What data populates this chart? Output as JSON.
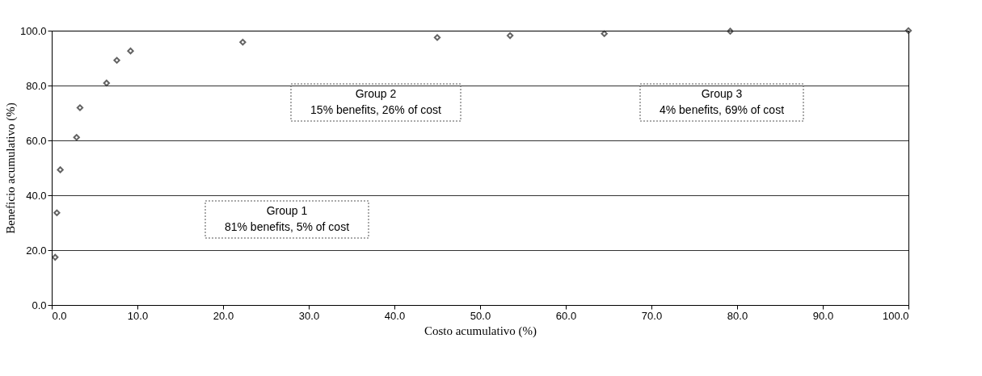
{
  "chart_data": {
    "type": "scatter",
    "xlabel": "Costo acumulativo (%)",
    "ylabel": "Beneficio acumulativo (%)",
    "x": [
      0.4,
      0.6,
      1.0,
      2.9,
      3.3,
      6.4,
      7.6,
      9.2,
      22.3,
      45.0,
      53.5,
      64.5,
      79.2,
      100.0
    ],
    "series": [
      {
        "color": "#222222",
        "values": [
          17.4,
          33.6,
          49.3,
          61.1,
          71.9,
          80.9,
          89.2,
          92.6,
          95.8,
          97.5,
          98.2,
          98.9,
          99.8,
          100.0
        ]
      }
    ],
    "xlim": [
      0,
      100
    ],
    "ylim": [
      0,
      100
    ],
    "xticks": [
      {
        "value": 0,
        "label": "0.0"
      },
      {
        "value": 10,
        "label": "10.0"
      },
      {
        "value": 20,
        "label": "20.0"
      },
      {
        "value": 30,
        "label": "30.0"
      },
      {
        "value": 40,
        "label": "40.0"
      },
      {
        "value": 50,
        "label": "50.0"
      },
      {
        "value": 60,
        "label": "60.0"
      },
      {
        "value": 70,
        "label": "70.0"
      },
      {
        "value": 80,
        "label": "80.0"
      },
      {
        "value": 90,
        "label": "90.0"
      },
      {
        "value": 100,
        "label": "100.0"
      }
    ],
    "yticks": [
      {
        "value": 0,
        "label": "0.0"
      },
      {
        "value": 20,
        "label": "20.0"
      },
      {
        "value": 40,
        "label": "40.0"
      },
      {
        "value": 60,
        "label": "60.0"
      },
      {
        "value": 80,
        "label": "80.0"
      },
      {
        "value": 100,
        "label": "100.0"
      }
    ],
    "grid": "y",
    "marker": "diamond",
    "legend": false,
    "annotations": [
      "Group 1\n81% benefits, 5% of cost",
      "Group 2\n15% benefits, 26% of cost",
      "Group 3\n4% benefits, 69% of cost"
    ]
  }
}
